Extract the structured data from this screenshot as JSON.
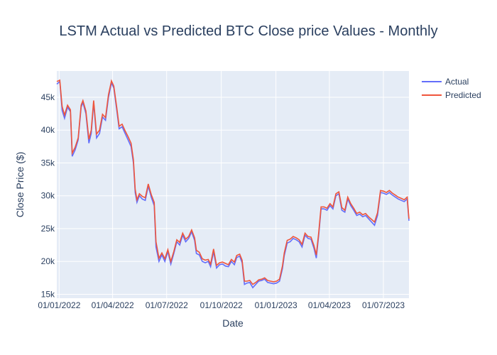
{
  "chart_data": {
    "type": "line",
    "title": "LSTM Actual vs Predicted BTC Close price Values - Monthly",
    "xlabel": "Date",
    "ylabel": "Close Price ($)",
    "x_range": [
      "2021-12-28",
      "2023-08-13"
    ],
    "ylim": [
      14400,
      49000
    ],
    "x_ticks": [
      {
        "date": "2022-01-01",
        "label": "01/01/2022"
      },
      {
        "date": "2022-04-01",
        "label": "01/04/2022"
      },
      {
        "date": "2022-07-01",
        "label": "01/07/2022"
      },
      {
        "date": "2022-10-01",
        "label": "01/10/2022"
      },
      {
        "date": "2023-01-01",
        "label": "01/01/2023"
      },
      {
        "date": "2023-04-01",
        "label": "01/04/2023"
      },
      {
        "date": "2023-07-01",
        "label": "01/07/2023"
      }
    ],
    "y_ticks": [
      {
        "value": 15000,
        "label": "15k"
      },
      {
        "value": 20000,
        "label": "20k"
      },
      {
        "value": 25000,
        "label": "25k"
      },
      {
        "value": 30000,
        "label": "30k"
      },
      {
        "value": 35000,
        "label": "35k"
      },
      {
        "value": 40000,
        "label": "40k"
      },
      {
        "value": 45000,
        "label": "45k"
      }
    ],
    "grid": true,
    "legend_position": "top-right",
    "x": [
      "2021-12-28",
      "2022-01-02",
      "2022-01-06",
      "2022-01-10",
      "2022-01-15",
      "2022-01-20",
      "2022-01-23",
      "2022-01-28",
      "2022-02-02",
      "2022-02-07",
      "2022-02-10",
      "2022-02-15",
      "2022-02-20",
      "2022-02-24",
      "2022-02-28",
      "2022-03-05",
      "2022-03-10",
      "2022-03-15",
      "2022-03-20",
      "2022-03-25",
      "2022-03-30",
      "2022-04-03",
      "2022-04-08",
      "2022-04-12",
      "2022-04-17",
      "2022-04-22",
      "2022-04-27",
      "2022-05-02",
      "2022-05-06",
      "2022-05-09",
      "2022-05-12",
      "2022-05-16",
      "2022-05-21",
      "2022-05-26",
      "2022-05-31",
      "2022-06-05",
      "2022-06-10",
      "2022-06-13",
      "2022-06-18",
      "2022-06-23",
      "2022-06-28",
      "2022-07-03",
      "2022-07-08",
      "2022-07-13",
      "2022-07-18",
      "2022-07-23",
      "2022-07-28",
      "2022-08-02",
      "2022-08-07",
      "2022-08-12",
      "2022-08-17",
      "2022-08-20",
      "2022-08-25",
      "2022-08-30",
      "2022-09-04",
      "2022-09-09",
      "2022-09-13",
      "2022-09-18",
      "2022-09-23",
      "2022-09-28",
      "2022-10-03",
      "2022-10-08",
      "2022-10-13",
      "2022-10-18",
      "2022-10-23",
      "2022-10-27",
      "2022-11-01",
      "2022-11-05",
      "2022-11-09",
      "2022-11-13",
      "2022-11-18",
      "2022-11-23",
      "2022-11-28",
      "2022-12-03",
      "2022-12-08",
      "2022-12-13",
      "2022-12-18",
      "2022-12-23",
      "2022-12-28",
      "2023-01-02",
      "2023-01-07",
      "2023-01-12",
      "2023-01-15",
      "2023-01-20",
      "2023-01-25",
      "2023-01-30",
      "2023-02-04",
      "2023-02-09",
      "2023-02-14",
      "2023-02-19",
      "2023-02-24",
      "2023-03-01",
      "2023-03-06",
      "2023-03-10",
      "2023-03-14",
      "2023-03-18",
      "2023-03-23",
      "2023-03-28",
      "2023-04-02",
      "2023-04-07",
      "2023-04-12",
      "2023-04-17",
      "2023-04-22",
      "2023-04-27",
      "2023-05-02",
      "2023-05-07",
      "2023-05-12",
      "2023-05-17",
      "2023-05-22",
      "2023-05-27",
      "2023-06-01",
      "2023-06-06",
      "2023-06-11",
      "2023-06-16",
      "2023-06-21",
      "2023-06-26",
      "2023-07-01",
      "2023-07-06",
      "2023-07-11",
      "2023-07-16",
      "2023-07-21",
      "2023-07-26",
      "2023-07-31",
      "2023-08-05",
      "2023-08-10",
      "2023-08-13"
    ],
    "series": [
      {
        "name": "Actual",
        "color": "#636efa",
        "values": [
          47000,
          47400,
          43000,
          41800,
          43500,
          42800,
          36000,
          37000,
          38500,
          43500,
          44200,
          42500,
          38000,
          39500,
          44200,
          38800,
          39500,
          42000,
          41500,
          45000,
          47200,
          46400,
          43000,
          40200,
          40500,
          39500,
          38500,
          37500,
          35000,
          30500,
          29000,
          30000,
          29500,
          29300,
          31500,
          29800,
          28500,
          22200,
          20000,
          21000,
          20000,
          21500,
          19600,
          21200,
          23000,
          22500,
          24000,
          23000,
          23500,
          24500,
          23200,
          21200,
          21000,
          20000,
          19800,
          20000,
          19200,
          21500,
          19000,
          19500,
          19600,
          19300,
          19200,
          20000,
          19500,
          20600,
          20800,
          19800,
          16500,
          16700,
          16800,
          16000,
          16500,
          17000,
          17100,
          17300,
          16800,
          16700,
          16600,
          16700,
          17000,
          18900,
          20900,
          22800,
          23000,
          23500,
          23300,
          23000,
          22200,
          24000,
          23500,
          23400,
          22000,
          20500,
          24000,
          28000,
          28000,
          27800,
          28500,
          28000,
          30000,
          30300,
          27800,
          27500,
          29500,
          28500,
          27800,
          27000,
          27200,
          26800,
          27000,
          26500,
          26000,
          25500,
          27000,
          30500,
          30400,
          30200,
          30500,
          30100,
          29800,
          29500,
          29300,
          29100,
          29500,
          26200
        ]
      },
      {
        "name": "Predicted",
        "color": "#ef553b",
        "values": [
          47400,
          47600,
          43600,
          42300,
          43800,
          43100,
          36500,
          37400,
          38800,
          43800,
          44500,
          42900,
          38600,
          40000,
          44500,
          39400,
          40000,
          42400,
          41900,
          45400,
          47500,
          46700,
          43400,
          40600,
          40900,
          39900,
          39000,
          38000,
          35500,
          31000,
          29400,
          30300,
          29900,
          29700,
          31800,
          30200,
          29000,
          23000,
          20500,
          21300,
          20400,
          21800,
          20000,
          21500,
          23300,
          22900,
          24300,
          23400,
          23800,
          24800,
          23600,
          21700,
          21400,
          20400,
          20200,
          20300,
          19600,
          21900,
          19400,
          19800,
          19900,
          19700,
          19500,
          20300,
          19900,
          20900,
          21100,
          20200,
          17000,
          17000,
          17100,
          16500,
          16800,
          17200,
          17300,
          17500,
          17100,
          17000,
          16900,
          17000,
          17300,
          19300,
          21300,
          23200,
          23400,
          23800,
          23600,
          23300,
          22600,
          24300,
          23800,
          23700,
          22400,
          21000,
          24400,
          28300,
          28300,
          28100,
          28800,
          28300,
          30300,
          30600,
          28200,
          27800,
          29800,
          28800,
          28100,
          27300,
          27500,
          27100,
          27300,
          26800,
          26400,
          26000,
          27400,
          30800,
          30700,
          30500,
          30800,
          30400,
          30100,
          29800,
          29600,
          29400,
          29800,
          26500
        ]
      }
    ]
  }
}
